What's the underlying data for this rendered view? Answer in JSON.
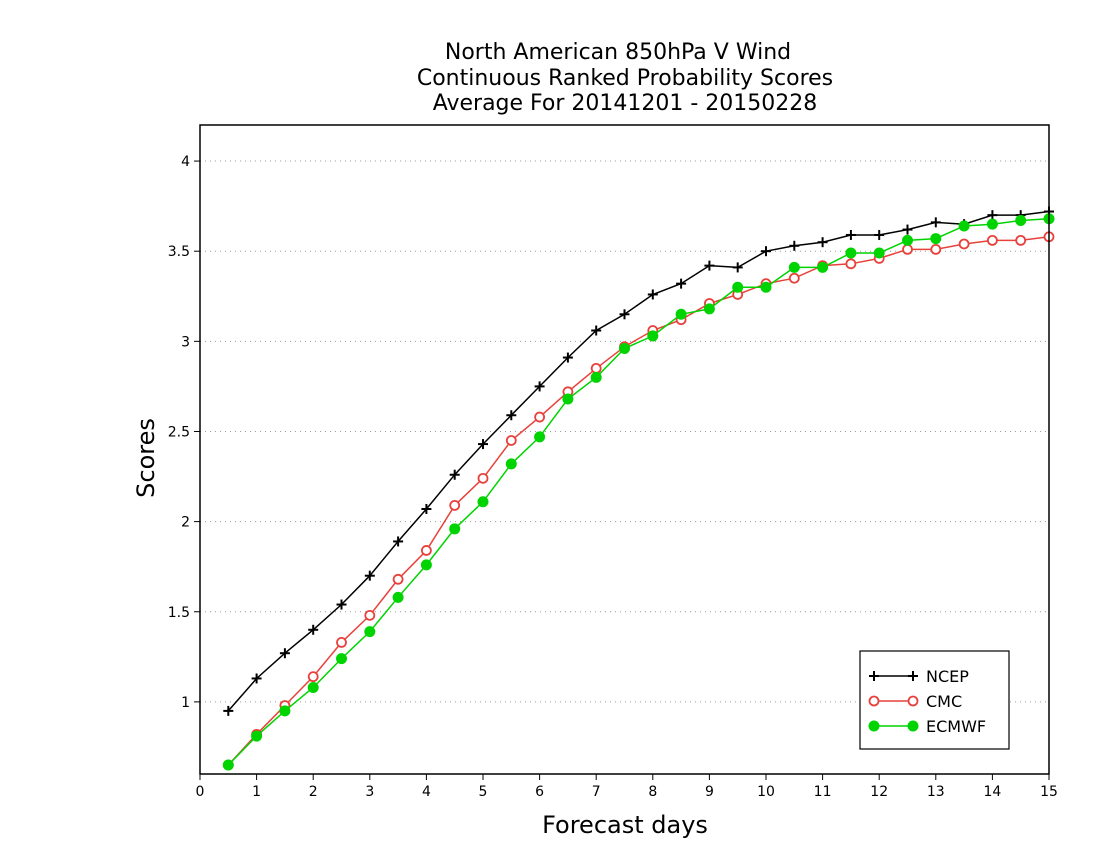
{
  "chart_data": {
    "type": "line",
    "title_lines": [
      "North American 850hPa V Wind",
      "Continuous Ranked Probability Scores",
      "Average For 20141201 - 20150228"
    ],
    "xlabel": "Forecast days",
    "ylabel": "Scores",
    "xlim": [
      0,
      15
    ],
    "ylim": [
      0.6,
      4.2
    ],
    "xticks": [
      "0",
      "1",
      "2",
      "3",
      "4",
      "5",
      "6",
      "7",
      "8",
      "9",
      "10",
      "11",
      "12",
      "13",
      "14",
      "15"
    ],
    "yticks": [
      "1",
      "1.5",
      "2",
      "2.5",
      "3",
      "3.5",
      "4"
    ],
    "grid": "horizontal dotted",
    "legend_position": "bottom-right",
    "x": [
      0.5,
      1,
      1.5,
      2,
      2.5,
      3,
      3.5,
      4,
      4.5,
      5,
      5.5,
      6,
      6.5,
      7,
      7.5,
      8,
      8.5,
      9,
      9.5,
      10,
      10.5,
      11,
      11.5,
      12,
      12.5,
      13,
      13.5,
      14,
      14.5,
      15
    ],
    "series": [
      {
        "name": "NCEP",
        "color": "#000000",
        "marker": "plus",
        "values": [
          0.95,
          1.13,
          1.27,
          1.4,
          1.54,
          1.7,
          1.89,
          2.07,
          2.26,
          2.43,
          2.59,
          2.75,
          2.91,
          3.06,
          3.15,
          3.26,
          3.32,
          3.42,
          3.41,
          3.5,
          3.53,
          3.55,
          3.59,
          3.59,
          3.62,
          3.66,
          3.65,
          3.7,
          3.7,
          3.72
        ]
      },
      {
        "name": "CMC",
        "color": "#e8413b",
        "marker": "open-circle",
        "values": [
          0.65,
          0.82,
          0.98,
          1.14,
          1.33,
          1.48,
          1.68,
          1.84,
          2.09,
          2.24,
          2.45,
          2.58,
          2.72,
          2.85,
          2.97,
          3.06,
          3.12,
          3.21,
          3.26,
          3.32,
          3.35,
          3.42,
          3.43,
          3.46,
          3.51,
          3.51,
          3.54,
          3.56,
          3.56,
          3.58
        ]
      },
      {
        "name": "ECMWF",
        "color": "#00d400",
        "marker": "filled-circle",
        "values": [
          0.65,
          0.81,
          0.95,
          1.08,
          1.24,
          1.39,
          1.58,
          1.76,
          1.96,
          2.11,
          2.32,
          2.47,
          2.68,
          2.8,
          2.96,
          3.03,
          3.15,
          3.18,
          3.3,
          3.3,
          3.41,
          3.41,
          3.49,
          3.49,
          3.56,
          3.57,
          3.64,
          3.65,
          3.67,
          3.68
        ]
      }
    ]
  }
}
